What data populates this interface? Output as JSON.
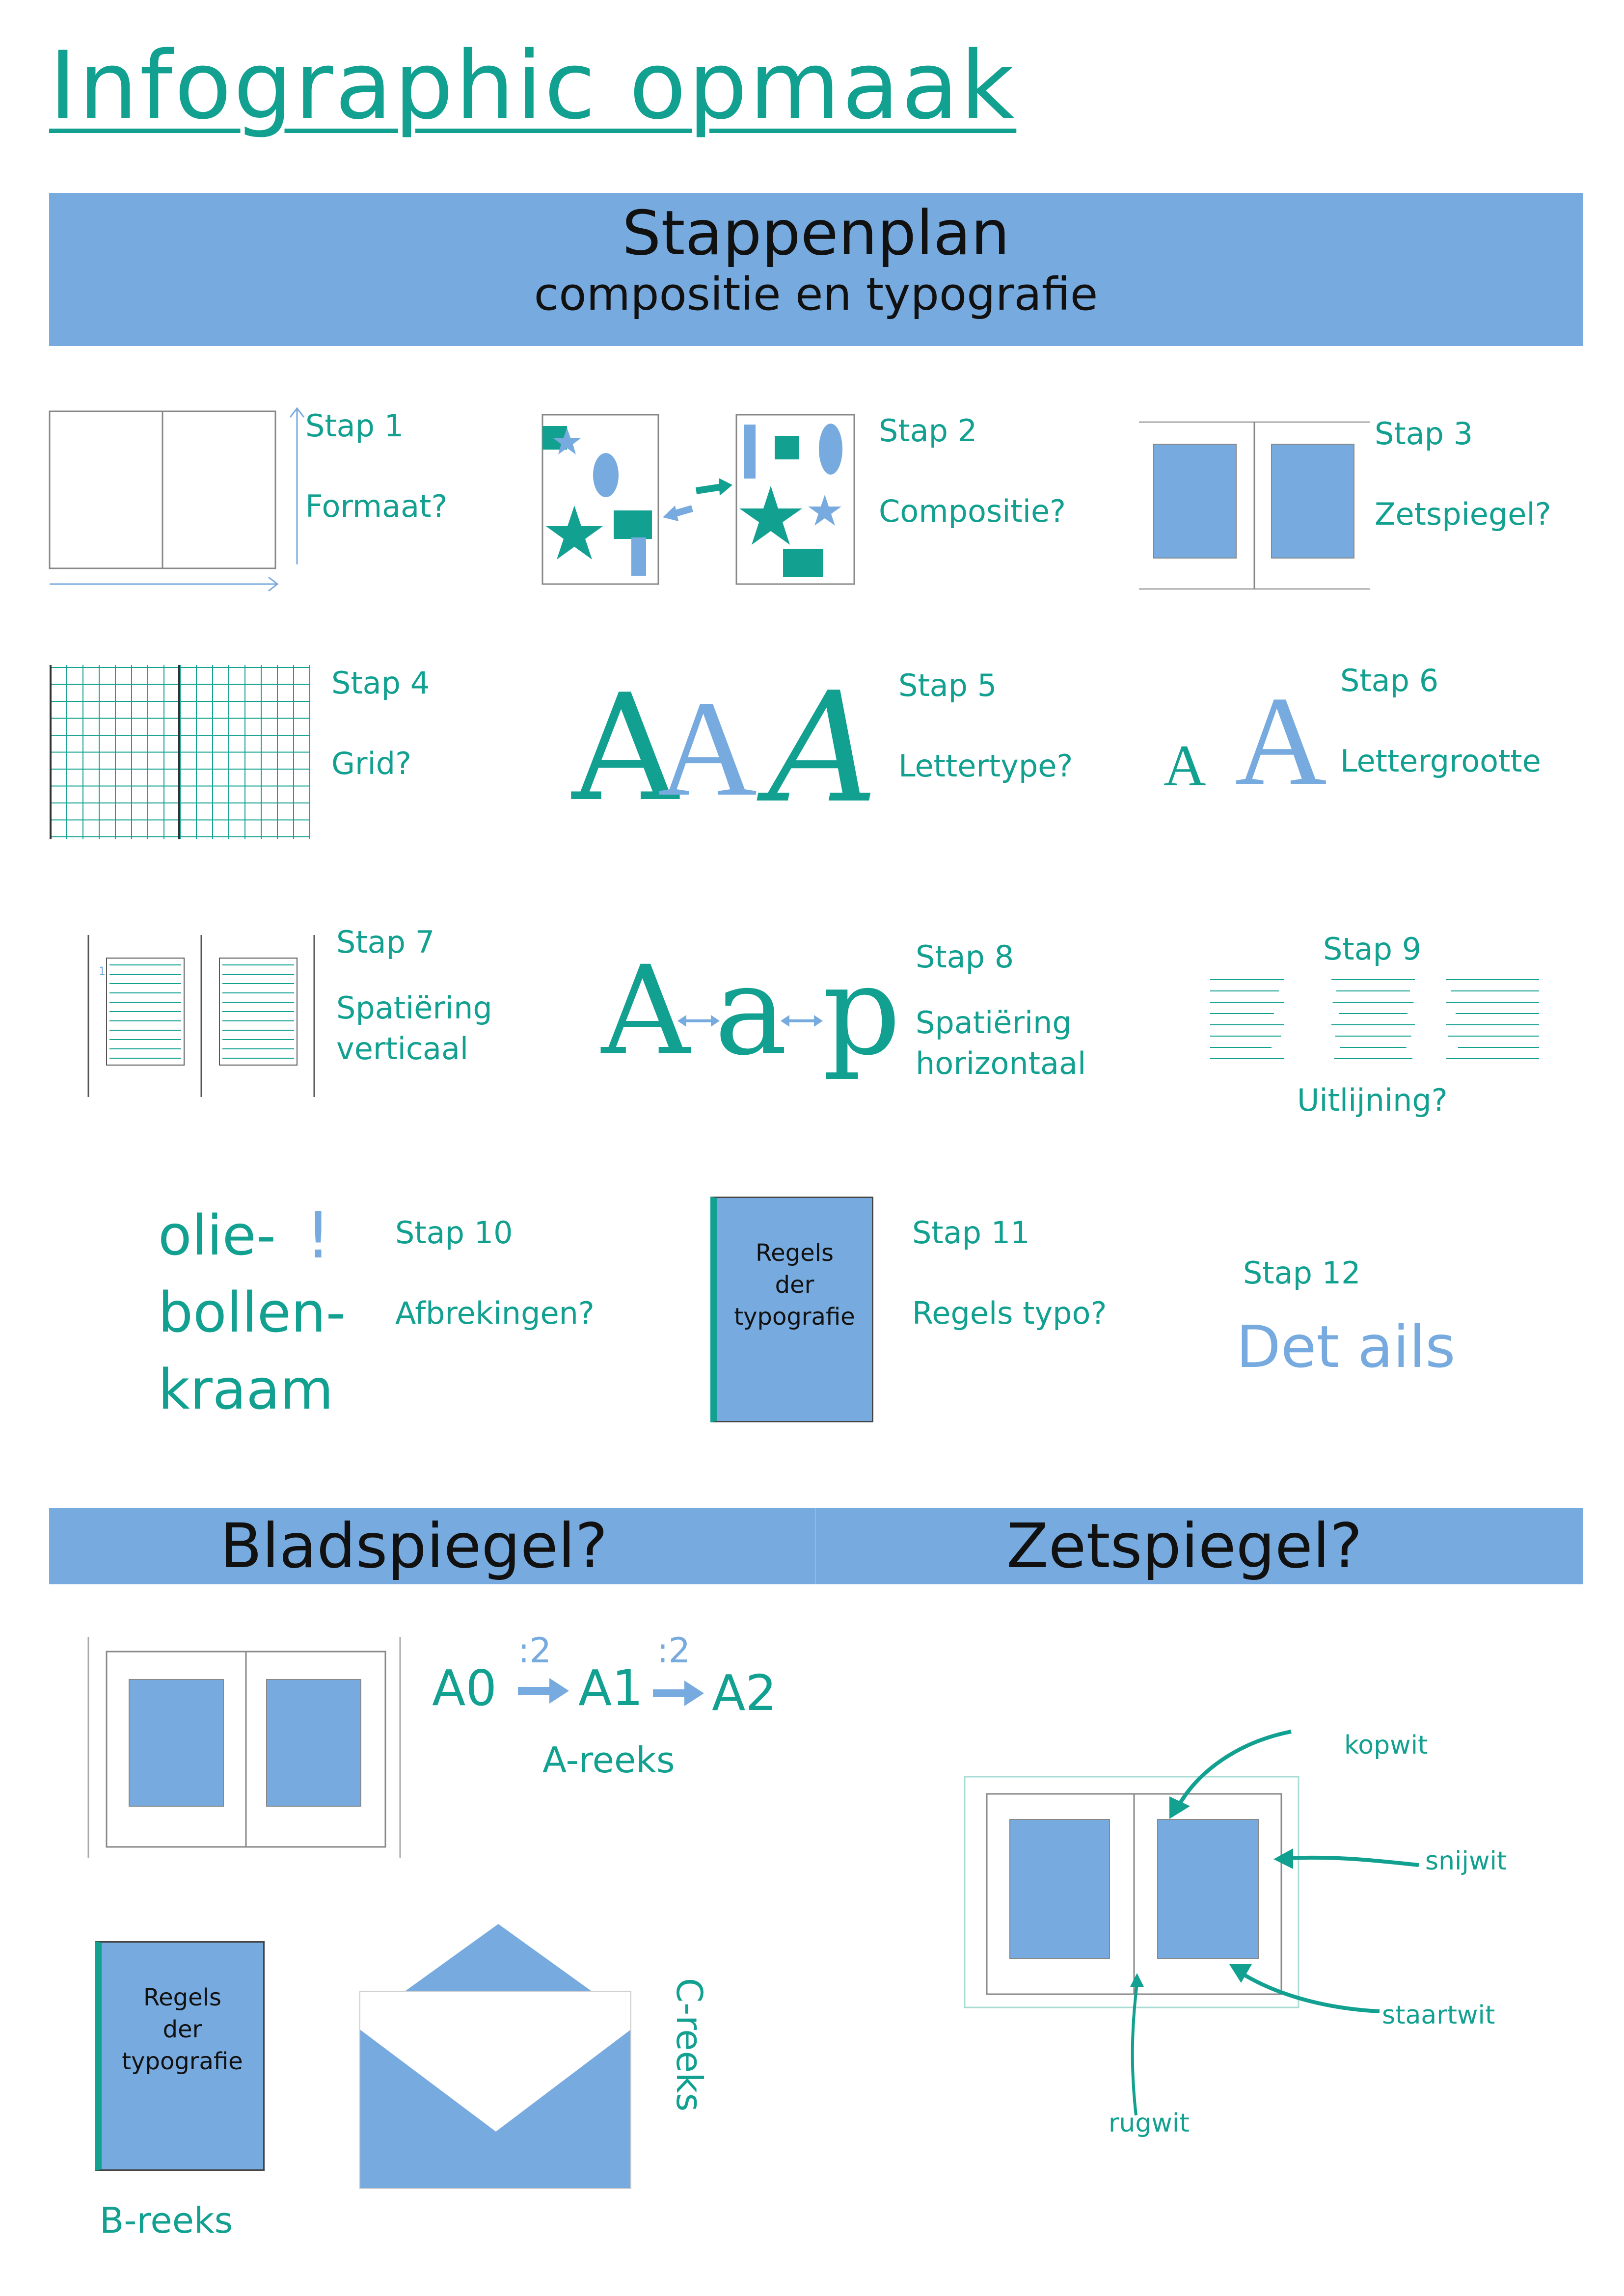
{
  "title": "Infographic opmaak",
  "band": {
    "title": "Stappenplan",
    "subtitle": "compositie en typografie"
  },
  "steps": [
    {
      "label": "Stap 1",
      "text": "Formaat?"
    },
    {
      "label": "Stap 2",
      "text": "Compositie?"
    },
    {
      "label": "Stap 3",
      "text": "Zetspiegel?"
    },
    {
      "label": "Stap 4",
      "text": "Grid?"
    },
    {
      "label": "Stap 5",
      "text": "Lettertype?"
    },
    {
      "label": "Stap 6",
      "text": "Lettergrootte"
    },
    {
      "label": "Stap 7",
      "text": "Spatiëring",
      "text2": "verticaal"
    },
    {
      "label": "Stap 8",
      "text": "Spatiëring",
      "text2": "horizontaal"
    },
    {
      "label": "Stap 9",
      "text": "Uitlijning?"
    },
    {
      "label": "Stap 10",
      "text": "Afbrekingen?"
    },
    {
      "label": "Stap 11",
      "text": "Regels typo?"
    },
    {
      "label": "Stap 12",
      "text": "Det ails"
    }
  ],
  "fonts_sample": {
    "a": "A",
    "aap": [
      "A",
      "a",
      "p"
    ]
  },
  "hyphen_example": [
    "olie-",
    "bollen-",
    "kraam"
  ],
  "exclamation": "!",
  "book": {
    "line1": "Regels",
    "line2": "der",
    "line3": "typografie"
  },
  "section2": {
    "left": "Bladspiegel?",
    "right": "Zetspiegel?"
  },
  "a_series": {
    "a0": "A0",
    "a1": "A1",
    "a2": "A2",
    "divide": ":2",
    "label": "A-reeks"
  },
  "b_series": {
    "label": "B-reeks"
  },
  "c_series": {
    "label": "C-reeks"
  },
  "margins": {
    "kopwit": "kopwit",
    "snijwit": "snijwit",
    "staartwit": "staartwit",
    "rugwit": "rugwit"
  },
  "colors": {
    "teal": "#12a090",
    "blue": "#77aade",
    "dark": "#111111"
  }
}
